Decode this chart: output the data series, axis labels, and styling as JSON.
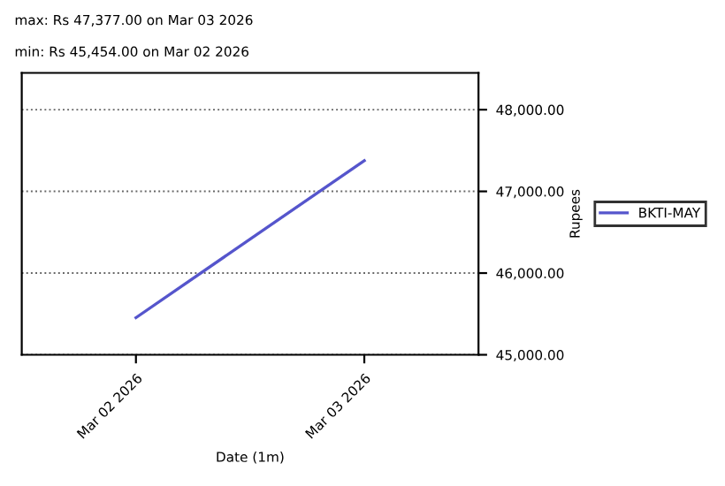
{
  "chart_data": {
    "type": "line",
    "annotations": [
      "max: Rs 47,377.00 on Mar 03 2026",
      "min: Rs 45,454.00 on Mar 02 2026"
    ],
    "x": [
      "2026-03-02",
      "2026-03-03"
    ],
    "xlim": [
      "2026-03-01T12:00",
      "2026-03-03T12:00"
    ],
    "xticks": [
      {
        "value": "2026-03-02",
        "label": "Mar 02 2026"
      },
      {
        "value": "2026-03-03",
        "label": "Mar 03 2026"
      }
    ],
    "series": [
      {
        "name": "BKTI-MAY",
        "color": "#5555cc",
        "values": [
          45454,
          47377
        ]
      }
    ],
    "ylim": [
      45000,
      48450
    ],
    "yticks": [
      {
        "value": 45000,
        "label": "45,000.00"
      },
      {
        "value": 46000,
        "label": "46,000.00"
      },
      {
        "value": 47000,
        "label": "47,000.00"
      },
      {
        "value": 48000,
        "label": "48,000.00"
      }
    ],
    "ylabel": "Rupees",
    "xlabel": "Date (1m)",
    "grid": "y",
    "legend": "right",
    "marker": "none",
    "line_style": "solid"
  }
}
